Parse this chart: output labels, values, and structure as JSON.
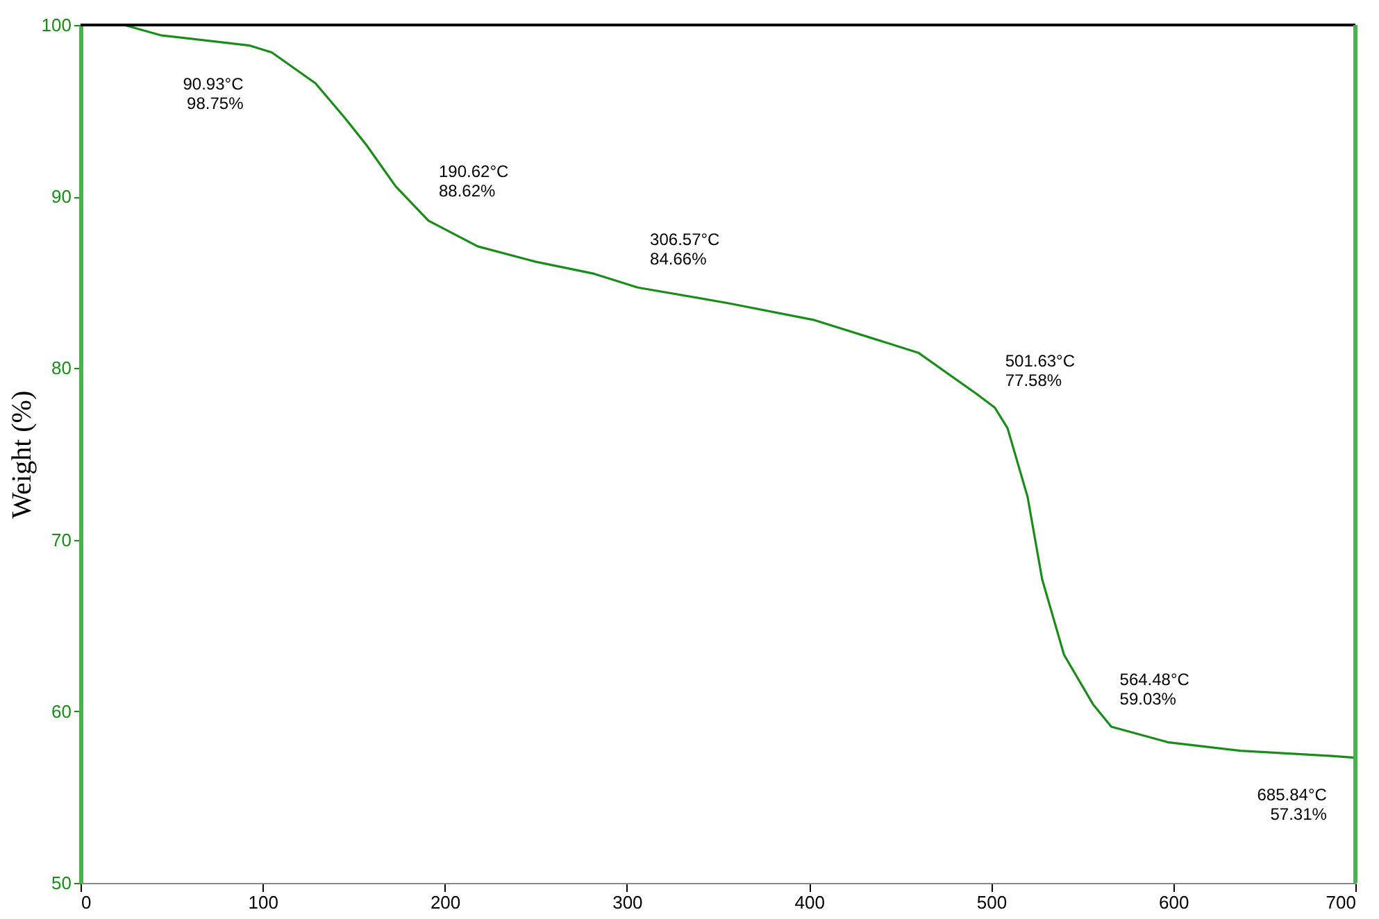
{
  "chart_data": {
    "type": "line",
    "ylabel": "Weight (%)",
    "xlim": [
      0,
      700
    ],
    "xticks": [
      0,
      100,
      200,
      300,
      400,
      500,
      600,
      700
    ],
    "ylim": [
      50,
      100
    ],
    "yticks": [
      50,
      60,
      70,
      80,
      90,
      100
    ],
    "grid": false,
    "marker": "none",
    "line_style": "solid",
    "series": [
      {
        "color": "#1a8c1a",
        "x": [
          24,
          44,
          93,
          105,
          129,
          145,
          157,
          173,
          191,
          218,
          250,
          282,
          306,
          355,
          403,
          460,
          492,
          502,
          509,
          520,
          528,
          540,
          556,
          566,
          597,
          637,
          687,
          700
        ],
        "values": [
          100,
          99.4,
          98.8,
          98.4,
          96.6,
          94.6,
          93.0,
          90.6,
          88.6,
          87.1,
          86.2,
          85.5,
          84.7,
          83.8,
          82.8,
          80.9,
          78.5,
          77.7,
          76.5,
          72.5,
          67.7,
          63.3,
          60.4,
          59.1,
          58.2,
          57.7,
          57.4,
          57.3
        ]
      }
    ],
    "annotations": [
      {
        "text": "90.93°C\n98.75%",
        "x": 90.93,
        "y": 98.75
      },
      {
        "text": "190.62°C\n88.62%",
        "x": 190.62,
        "y": 88.62
      },
      {
        "text": "306.57°C\n84.66%",
        "x": 306.57,
        "y": 84.66
      },
      {
        "text": "501.63°C\n77.58%",
        "x": 501.63,
        "y": 77.58
      },
      {
        "text": "564.48°C\n59.03%",
        "x": 564.48,
        "y": 59.03
      },
      {
        "text": "685.84°C\n57.31%",
        "x": 685.84,
        "y": 57.31
      }
    ]
  }
}
